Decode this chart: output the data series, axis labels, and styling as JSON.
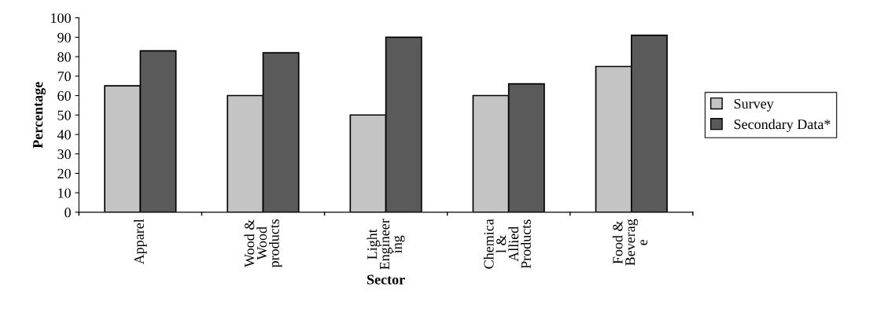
{
  "chart_data": {
    "type": "bar",
    "xlabel": "Sector",
    "ylabel": "Percentage",
    "categories": [
      "Apparel",
      "Wood &\nWood\nproducts",
      "Light\nEngineer\ning",
      "Chemica\nl &\nAllied\nProducts",
      "Food &\nBeverag\ne"
    ],
    "series": [
      {
        "name": "Survey",
        "color": "#c4c4c4",
        "values": [
          65,
          60,
          50,
          60,
          75
        ]
      },
      {
        "name": "Secondary Data*",
        "color": "#5a5a5a",
        "values": [
          83,
          82,
          90,
          66,
          91
        ]
      }
    ],
    "ylim": [
      0,
      100
    ],
    "yticks": [
      0,
      10,
      20,
      30,
      40,
      50,
      60,
      70,
      80,
      90,
      100
    ],
    "grid": false,
    "legend": "right"
  }
}
